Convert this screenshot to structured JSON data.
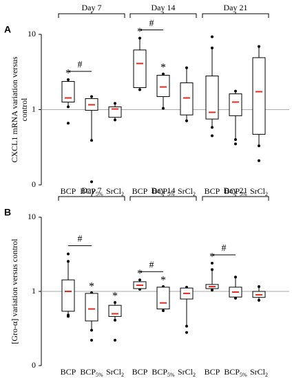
{
  "chart_data": [
    {
      "type": "box",
      "panel": "A",
      "ylabel": [
        "CXCL1 mRNA variation versus",
        "control"
      ],
      "log": true,
      "ylim": [
        0.1,
        10
      ],
      "yticks": [
        {
          "value": 0.1,
          "label": "0"
        },
        1,
        10
      ],
      "reference": 1,
      "box_color": "#000000",
      "median_color": "#e8261f",
      "reference_color": "#aaaaaa",
      "categories": [
        {
          "text": "BCP"
        },
        {
          "text": "BCP",
          "sub": "5%"
        },
        {
          "text": "SrCl",
          "sub": "2"
        }
      ],
      "groups": [
        {
          "name": "Day 7",
          "comparison": {
            "label": "#",
            "between": [
              0,
              1
            ]
          },
          "boxes": [
            {
              "whisker_low": 1.09,
              "q1": 1.26,
              "median": 1.43,
              "q3": 2.37,
              "whisker_high": 2.5,
              "outliers": [
                0.66
              ],
              "mark": "*"
            },
            {
              "whisker_low": 0.39,
              "q1": 0.98,
              "median": 1.16,
              "q3": 1.4,
              "whisker_high": 1.49,
              "outliers": [
                0.11
              ]
            },
            {
              "whisker_low": 0.73,
              "q1": 0.79,
              "median": 1.02,
              "q3": 1.09,
              "whisker_high": 1.21,
              "outliers": []
            }
          ]
        },
        {
          "name": "Day 14",
          "comparison": {
            "label": "#",
            "between": [
              0,
              1
            ]
          },
          "boxes": [
            {
              "whisker_low": 1.84,
              "q1": 1.96,
              "median": 4.1,
              "q3": 6.2,
              "whisker_high": 8.9,
              "outliers": [],
              "mark": "*"
            },
            {
              "whisker_low": 1.04,
              "q1": 1.49,
              "median": 2.0,
              "q3": 2.86,
              "whisker_high": 2.98,
              "outliers": [],
              "mark": "*"
            },
            {
              "whisker_low": 0.71,
              "q1": 0.85,
              "median": 1.43,
              "q3": 2.27,
              "whisker_high": 3.6,
              "outliers": []
            }
          ]
        },
        {
          "name": "Day 21",
          "boxes": [
            {
              "whisker_low": 0.58,
              "q1": 0.75,
              "median": 0.92,
              "q3": 2.8,
              "whisker_high": 6.6,
              "outliers": [
                9.3,
                0.45
              ]
            },
            {
              "whisker_low": 0.4,
              "q1": 0.83,
              "median": 1.26,
              "q3": 1.62,
              "whisker_high": 1.76,
              "outliers": [
                0.35
              ]
            },
            {
              "whisker_low": 0.33,
              "q1": 0.47,
              "median": 1.73,
              "q3": 4.9,
              "whisker_high": 6.9,
              "outliers": [
                0.21
              ]
            }
          ]
        }
      ]
    },
    {
      "type": "box",
      "panel": "B",
      "ylabel": [
        "[Gro-α] variation versus control"
      ],
      "log": true,
      "ylim": [
        0.1,
        10
      ],
      "yticks": [
        {
          "value": 0.1,
          "label": "0"
        },
        1,
        10
      ],
      "reference": 1,
      "box_color": "#000000",
      "median_color": "#e8261f",
      "reference_color": "#aaaaaa",
      "categories": [
        {
          "text": "BCP"
        },
        {
          "text": "BCP",
          "sub": "5%"
        },
        {
          "text": "SrCl",
          "sub": "2"
        }
      ],
      "groups": [
        {
          "name": "Day 7",
          "comparison": {
            "label": "#",
            "between": [
              0,
              1
            ]
          },
          "boxes": [
            {
              "whisker_low": 0.48,
              "q1": 0.54,
              "median": 1.0,
              "q3": 1.43,
              "whisker_high": 2.54,
              "outliers": [
                3.2,
                0.46
              ]
            },
            {
              "whisker_low": 0.3,
              "q1": 0.4,
              "median": 0.58,
              "q3": 0.94,
              "whisker_high": 0.96,
              "outliers": [
                0.22
              ],
              "mark": "*"
            },
            {
              "whisker_low": 0.41,
              "q1": 0.46,
              "median": 0.5,
              "q3": 0.65,
              "whisker_high": 0.71,
              "outliers": [
                0.22
              ],
              "mark": "*"
            }
          ]
        },
        {
          "name": "Day 14",
          "comparison": {
            "label": "#",
            "between": [
              0,
              1
            ]
          },
          "boxes": [
            {
              "whisker_low": 1.07,
              "q1": 1.09,
              "median": 1.21,
              "q3": 1.35,
              "whisker_high": 1.43,
              "outliers": [],
              "mark": "*"
            },
            {
              "whisker_low": 0.55,
              "q1": 0.58,
              "median": 0.7,
              "q3": 1.14,
              "whisker_high": 1.16,
              "outliers": [],
              "mark": "*"
            },
            {
              "whisker_low": 0.34,
              "q1": 0.79,
              "median": 0.94,
              "q3": 1.11,
              "whisker_high": 1.14,
              "outliers": [
                0.28
              ]
            }
          ]
        },
        {
          "name": "Day 21",
          "comparison": {
            "label": "#",
            "between": [
              0,
              1
            ]
          },
          "boxes": [
            {
              "whisker_low": 1.04,
              "q1": 1.09,
              "median": 1.16,
              "q3": 1.24,
              "whisker_high": 1.97,
              "outliers": [
                2.4
              ],
              "mark": "*"
            },
            {
              "whisker_low": 0.81,
              "q1": 0.84,
              "median": 0.98,
              "q3": 1.14,
              "whisker_high": 1.56,
              "outliers": []
            },
            {
              "whisker_low": 0.76,
              "q1": 0.83,
              "median": 0.9,
              "q3": 1.0,
              "whisker_high": 1.16,
              "outliers": []
            }
          ]
        }
      ]
    }
  ]
}
